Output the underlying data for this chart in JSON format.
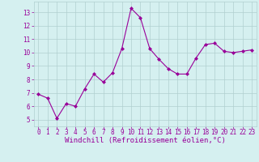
{
  "x": [
    0,
    1,
    2,
    3,
    4,
    5,
    6,
    7,
    8,
    9,
    10,
    11,
    12,
    13,
    14,
    15,
    16,
    17,
    18,
    19,
    20,
    21,
    22,
    23
  ],
  "y": [
    6.9,
    6.6,
    5.1,
    6.2,
    6.0,
    7.3,
    8.4,
    7.8,
    8.5,
    10.3,
    13.3,
    12.6,
    10.3,
    9.5,
    8.8,
    8.4,
    8.4,
    9.6,
    10.6,
    10.7,
    10.1,
    10.0,
    10.1,
    10.2
  ],
  "line_color": "#990099",
  "marker": "D",
  "marker_size": 2,
  "bg_color": "#d5f0f0",
  "grid_color": "#b0d0d0",
  "xlabel": "Windchill (Refroidissement éolien,°C)",
  "xlabel_color": "#990099",
  "xlabel_fontsize": 6.5,
  "tick_color": "#990099",
  "tick_fontsize": 5.5,
  "ylim": [
    4.5,
    13.8
  ],
  "xlim": [
    -0.5,
    23.5
  ],
  "yticks": [
    5,
    6,
    7,
    8,
    9,
    10,
    11,
    12,
    13
  ],
  "xticks": [
    0,
    1,
    2,
    3,
    4,
    5,
    6,
    7,
    8,
    9,
    10,
    11,
    12,
    13,
    14,
    15,
    16,
    17,
    18,
    19,
    20,
    21,
    22,
    23
  ]
}
